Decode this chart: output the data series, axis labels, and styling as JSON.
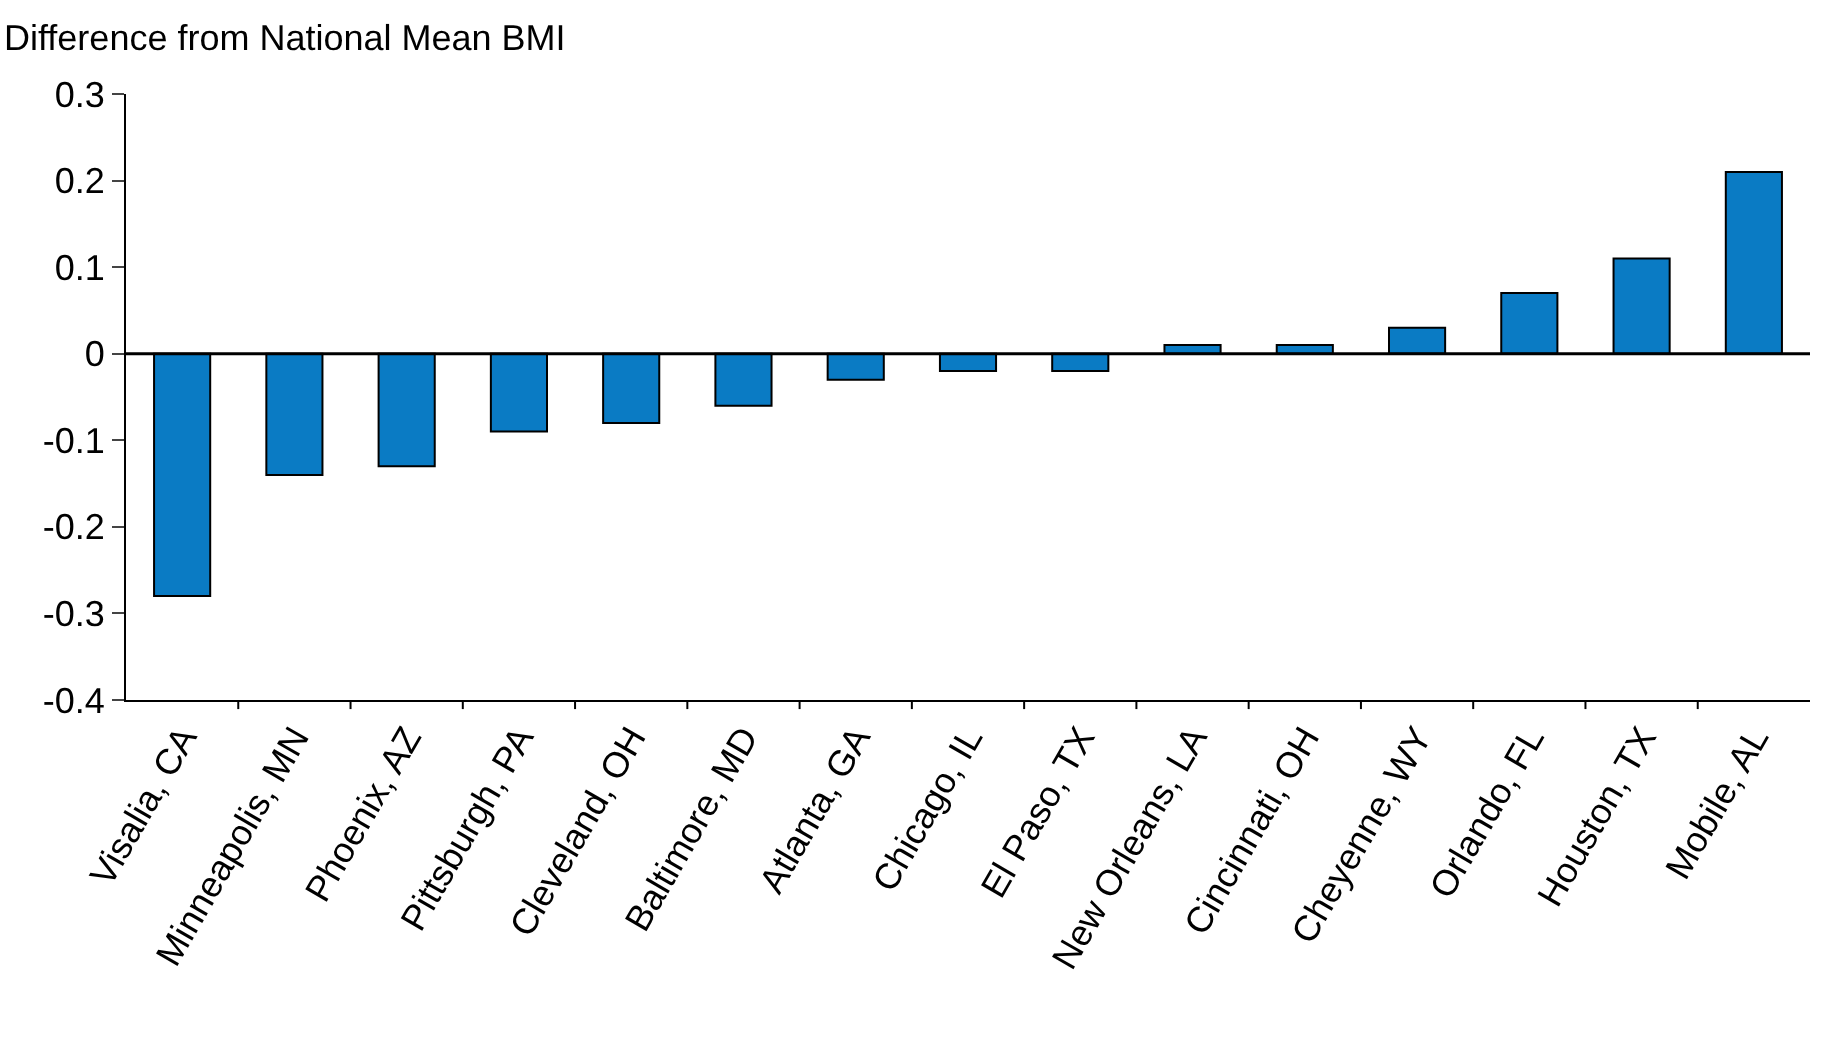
{
  "chart_data": {
    "type": "bar",
    "ylabel": "Difference from National Mean BMI",
    "categories": [
      "Visalia, CA",
      "Minneapolis, MN",
      "Phoenix, AZ",
      "Pittsburgh, PA",
      "Cleveland, OH",
      "Baltimore, MD",
      "Atlanta, GA",
      "Chicago, IL",
      "El Paso, TX",
      "New Orleans, LA",
      "Cincinnati, OH",
      "Cheyenne, WY",
      "Orlando, FL",
      "Houston, TX",
      "Mobile, AL"
    ],
    "values": [
      -0.28,
      -0.14,
      -0.13,
      -0.09,
      -0.08,
      -0.06,
      -0.03,
      -0.02,
      -0.02,
      0.01,
      0.01,
      0.03,
      0.07,
      0.11,
      0.21
    ],
    "color": "#0a7bc4",
    "ylim": [
      -0.4,
      0.3
    ],
    "yticks": [
      -0.4,
      -0.3,
      -0.2,
      -0.1,
      0,
      0.1,
      0.2,
      0.3
    ],
    "grid": false,
    "legend": false,
    "ref_lines": [
      {
        "axis": "y",
        "value": 0,
        "color": "#000000"
      }
    ]
  }
}
